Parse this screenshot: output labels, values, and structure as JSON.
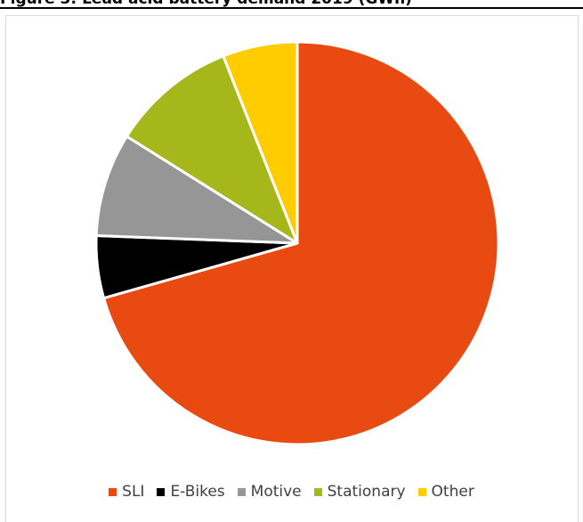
{
  "figure": {
    "caption": "Figure 3: Lead acid battery demand 2019 (GWh)"
  },
  "chart_data": {
    "type": "pie",
    "categories": [
      "SLI",
      "E-Bikes",
      "Motive",
      "Stationary",
      "Other"
    ],
    "values": [
      70.6,
      5.0,
      8.3,
      10.1,
      6.0
    ],
    "unit": "%",
    "colors": [
      "#E84A12",
      "#000000",
      "#969696",
      "#A5B71B",
      "#FFCC00"
    ],
    "start_angle": "12 o'clock",
    "direction": "clockwise",
    "legend_position": "bottom",
    "title": "",
    "data_labels": false
  }
}
